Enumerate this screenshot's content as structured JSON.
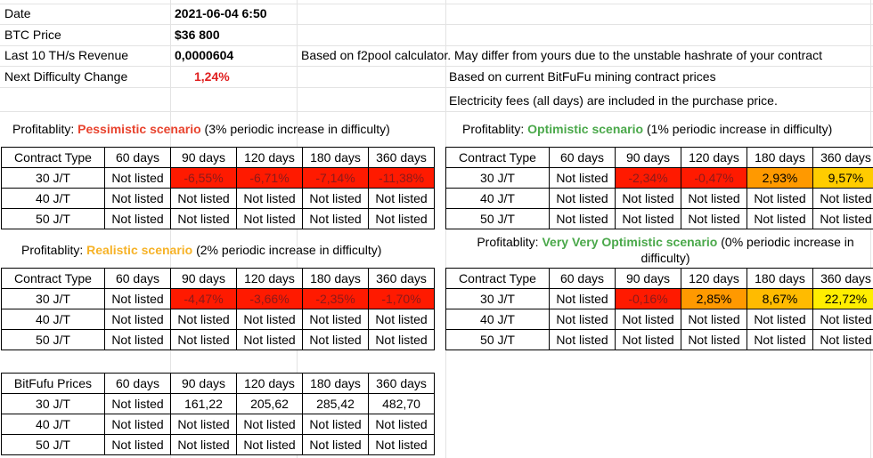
{
  "info": {
    "date_label": "Date",
    "date_value": "2021-06-04 6:50",
    "btc_label": "BTC Price",
    "btc_value": "$36 800",
    "revenue_label": "Last 10 TH/s Revenue",
    "revenue_value": "0,0000604",
    "revenue_note": "Based on f2pool calculator. May differ from yours due to the unstable hashrate of your contract",
    "difficulty_label": "Next Difficulty Change",
    "difficulty_value": "1,24%",
    "prices_note": "Based on current BitFuFu mining contract prices",
    "electricity_note": "Electricity fees (all days) are included in the purchase price."
  },
  "colors": {
    "pessimistic": "#e8432e",
    "realistic": "#f6b227",
    "optimistic": "#4aa84a",
    "difficulty": "#e02020"
  },
  "scenarios": {
    "pessimistic": {
      "prefix": "Profitablity: ",
      "name": "Pessimistic scenario",
      "suffix": " (3% periodic increase in difficulty)"
    },
    "optimistic": {
      "prefix": "Profitablity: ",
      "name": "Optimistic scenario",
      "suffix": " (1% periodic increase in difficulty)"
    },
    "realistic": {
      "prefix": "Profitablity: ",
      "name": "Realistic scenario",
      "suffix": " (2% periodic increase in difficulty)"
    },
    "very_optimistic": {
      "prefix": "Profitablity: ",
      "name": "Very Very Optimistic scenario",
      "suffix": " (0% periodic increase in",
      "suffix2": "difficulty)"
    }
  },
  "tables": {
    "headers": [
      "Contract Type",
      "60 days",
      "90 days",
      "120 days",
      "180 days",
      "360 days"
    ],
    "price_headers": [
      "BitFufu Prices",
      "60 days",
      "90 days",
      "120 days",
      "180 days",
      "360 days"
    ],
    "pessimistic": [
      [
        "30 J/T",
        "Not listed",
        "-6,55%",
        "-6,71%",
        "-7,14%",
        "-11,38%"
      ],
      [
        "40 J/T",
        "Not listed",
        "Not listed",
        "Not listed",
        "Not listed",
        "Not listed"
      ],
      [
        "50 J/T",
        "Not listed",
        "Not listed",
        "Not listed",
        "Not listed",
        "Not listed"
      ]
    ],
    "optimistic": [
      [
        "30 J/T",
        "Not listed",
        "-2,34%",
        "-0,47%",
        "2,93%",
        "9,57%"
      ],
      [
        "40 J/T",
        "Not listed",
        "Not listed",
        "Not listed",
        "Not listed",
        "Not listed"
      ],
      [
        "50 J/T",
        "Not listed",
        "Not listed",
        "Not listed",
        "Not listed",
        "Not listed"
      ]
    ],
    "realistic": [
      [
        "30 J/T",
        "Not listed",
        "-4,47%",
        "-3,66%",
        "-2,35%",
        "-1,70%"
      ],
      [
        "40 J/T",
        "Not listed",
        "Not listed",
        "Not listed",
        "Not listed",
        "Not listed"
      ],
      [
        "50 J/T",
        "Not listed",
        "Not listed",
        "Not listed",
        "Not listed",
        "Not listed"
      ]
    ],
    "very_optimistic": [
      [
        "30 J/T",
        "Not listed",
        "-0,16%",
        "2,85%",
        "8,67%",
        "22,72%"
      ],
      [
        "40 J/T",
        "Not listed",
        "Not listed",
        "Not listed",
        "Not listed",
        "Not listed"
      ],
      [
        "50 J/T",
        "Not listed",
        "Not listed",
        "Not listed",
        "Not listed",
        "Not listed"
      ]
    ],
    "prices": [
      [
        "30 J/T",
        "Not listed",
        "161,22",
        "205,62",
        "285,42",
        "482,70"
      ],
      [
        "40 J/T",
        "Not listed",
        "Not listed",
        "Not listed",
        "Not listed",
        "Not listed"
      ],
      [
        "50 J/T",
        "Not listed",
        "Not listed",
        "Not listed",
        "Not listed",
        "Not listed"
      ]
    ]
  },
  "cell_colors": {
    "pessimistic": [
      "",
      "",
      "#ff1a00",
      "#ff1a00",
      "#ff1a00",
      "#ff1a00"
    ],
    "optimistic": [
      "",
      "",
      "#ff1a00",
      "#ff1a00",
      "#ff9900",
      "#ffcc00"
    ],
    "realistic": [
      "",
      "",
      "#ff1a00",
      "#ff1a00",
      "#ff1a00",
      "#ff1a00"
    ],
    "very_optimistic": [
      "",
      "",
      "#ff1a00",
      "#ff9900",
      "#ffbb00",
      "#ffee00"
    ]
  }
}
